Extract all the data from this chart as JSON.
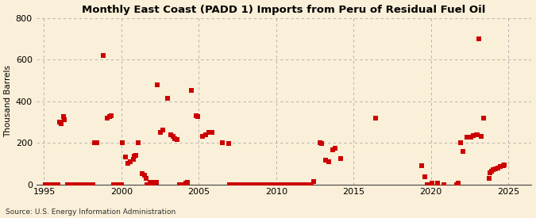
{
  "title": "Monthly East Coast (PADD 1) Imports from Peru of Residual Fuel Oil",
  "ylabel": "Thousand Barrels",
  "source": "Source: U.S. Energy Information Administration",
  "xlim": [
    1994.5,
    2026.5
  ],
  "ylim": [
    0,
    800
  ],
  "yticks": [
    0,
    200,
    400,
    600,
    800
  ],
  "xticks": [
    1995,
    2000,
    2005,
    2010,
    2015,
    2020,
    2025
  ],
  "background_color": "#faefd8",
  "dot_color": "#cc0000",
  "marker_size": 18,
  "data_points": [
    [
      1995.08,
      0
    ],
    [
      1995.17,
      0
    ],
    [
      1995.25,
      0
    ],
    [
      1995.33,
      0
    ],
    [
      1995.42,
      0
    ],
    [
      1995.5,
      0
    ],
    [
      1995.58,
      0
    ],
    [
      1995.67,
      0
    ],
    [
      1995.75,
      0
    ],
    [
      1995.83,
      0
    ],
    [
      1995.92,
      0
    ],
    [
      1996.0,
      300
    ],
    [
      1996.08,
      290
    ],
    [
      1996.25,
      325
    ],
    [
      1996.33,
      310
    ],
    [
      1996.5,
      0
    ],
    [
      1996.58,
      0
    ],
    [
      1996.67,
      0
    ],
    [
      1996.75,
      0
    ],
    [
      1996.83,
      0
    ],
    [
      1996.92,
      0
    ],
    [
      1997.0,
      0
    ],
    [
      1997.08,
      0
    ],
    [
      1997.17,
      0
    ],
    [
      1997.25,
      0
    ],
    [
      1997.33,
      0
    ],
    [
      1997.42,
      0
    ],
    [
      1997.5,
      0
    ],
    [
      1997.58,
      0
    ],
    [
      1997.67,
      0
    ],
    [
      1997.75,
      0
    ],
    [
      1997.83,
      0
    ],
    [
      1997.92,
      0
    ],
    [
      1998.0,
      0
    ],
    [
      1998.08,
      0
    ],
    [
      1998.17,
      0
    ],
    [
      1998.25,
      200
    ],
    [
      1998.42,
      200
    ],
    [
      1998.83,
      620
    ],
    [
      1999.08,
      320
    ],
    [
      1999.25,
      325
    ],
    [
      1999.33,
      330
    ],
    [
      1999.5,
      0
    ],
    [
      1999.58,
      0
    ],
    [
      1999.67,
      0
    ],
    [
      1999.75,
      0
    ],
    [
      1999.83,
      0
    ],
    [
      1999.92,
      0
    ],
    [
      2000.0,
      0
    ],
    [
      2000.08,
      200
    ],
    [
      2000.25,
      130
    ],
    [
      2000.42,
      100
    ],
    [
      2000.58,
      110
    ],
    [
      2000.75,
      120
    ],
    [
      2000.83,
      135
    ],
    [
      2000.92,
      140
    ],
    [
      2001.08,
      200
    ],
    [
      2001.33,
      50
    ],
    [
      2001.5,
      45
    ],
    [
      2001.58,
      30
    ],
    [
      2001.67,
      0
    ],
    [
      2001.75,
      0
    ],
    [
      2001.83,
      10
    ],
    [
      2001.92,
      10
    ],
    [
      2002.0,
      0
    ],
    [
      2002.08,
      0
    ],
    [
      2002.17,
      10
    ],
    [
      2002.25,
      10
    ],
    [
      2002.33,
      480
    ],
    [
      2002.5,
      250
    ],
    [
      2002.67,
      260
    ],
    [
      2003.0,
      415
    ],
    [
      2003.17,
      240
    ],
    [
      2003.33,
      230
    ],
    [
      2003.42,
      220
    ],
    [
      2003.58,
      215
    ],
    [
      2003.75,
      0
    ],
    [
      2003.83,
      0
    ],
    [
      2003.92,
      0
    ],
    [
      2004.0,
      0
    ],
    [
      2004.08,
      0
    ],
    [
      2004.17,
      5
    ],
    [
      2004.25,
      10
    ],
    [
      2004.5,
      450
    ],
    [
      2004.83,
      330
    ],
    [
      2004.92,
      325
    ],
    [
      2005.25,
      230
    ],
    [
      2005.42,
      240
    ],
    [
      2005.67,
      250
    ],
    [
      2005.83,
      250
    ],
    [
      2006.5,
      200
    ],
    [
      2006.92,
      195
    ],
    [
      2007.0,
      0
    ],
    [
      2007.25,
      0
    ],
    [
      2007.5,
      0
    ],
    [
      2007.75,
      0
    ],
    [
      2008.0,
      0
    ],
    [
      2008.25,
      0
    ],
    [
      2008.5,
      0
    ],
    [
      2008.75,
      0
    ],
    [
      2009.0,
      0
    ],
    [
      2009.25,
      0
    ],
    [
      2009.5,
      0
    ],
    [
      2009.75,
      0
    ],
    [
      2010.0,
      0
    ],
    [
      2010.25,
      0
    ],
    [
      2010.5,
      0
    ],
    [
      2010.75,
      0
    ],
    [
      2011.0,
      0
    ],
    [
      2011.25,
      0
    ],
    [
      2011.5,
      0
    ],
    [
      2011.75,
      0
    ],
    [
      2012.0,
      0
    ],
    [
      2012.25,
      0
    ],
    [
      2012.42,
      15
    ],
    [
      2012.83,
      200
    ],
    [
      2012.92,
      195
    ],
    [
      2013.17,
      115
    ],
    [
      2013.42,
      110
    ],
    [
      2013.67,
      165
    ],
    [
      2013.83,
      175
    ],
    [
      2014.17,
      125
    ],
    [
      2016.42,
      320
    ],
    [
      2019.42,
      90
    ],
    [
      2019.58,
      35
    ],
    [
      2019.75,
      0
    ],
    [
      2020.0,
      0
    ],
    [
      2020.08,
      5
    ],
    [
      2020.42,
      5
    ],
    [
      2020.83,
      0
    ],
    [
      2021.67,
      0
    ],
    [
      2021.75,
      5
    ],
    [
      2021.92,
      200
    ],
    [
      2022.08,
      160
    ],
    [
      2022.33,
      225
    ],
    [
      2022.58,
      225
    ],
    [
      2022.75,
      235
    ],
    [
      2022.92,
      240
    ],
    [
      2023.0,
      240
    ],
    [
      2023.08,
      700
    ],
    [
      2023.25,
      230
    ],
    [
      2023.42,
      320
    ],
    [
      2023.75,
      30
    ],
    [
      2023.83,
      55
    ],
    [
      2023.92,
      65
    ],
    [
      2024.0,
      70
    ],
    [
      2024.17,
      75
    ],
    [
      2024.33,
      80
    ],
    [
      2024.5,
      85
    ],
    [
      2024.67,
      90
    ],
    [
      2024.75,
      95
    ]
  ]
}
